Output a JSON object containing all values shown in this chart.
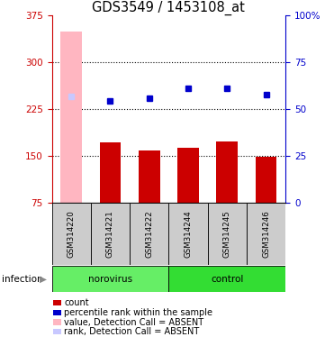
{
  "title": "GDS3549 / 1453108_at",
  "samples": [
    "GSM314220",
    "GSM314221",
    "GSM314222",
    "GSM314244",
    "GSM314245",
    "GSM314246"
  ],
  "bar_values": [
    350,
    172,
    158,
    163,
    173,
    148
  ],
  "bar_colors": [
    "#ffb6c1",
    "#cc0000",
    "#cc0000",
    "#cc0000",
    "#cc0000",
    "#cc0000"
  ],
  "dot_values": [
    245,
    238,
    243,
    258,
    258,
    248
  ],
  "dot_colors": [
    "#c8c8ff",
    "#0000cc",
    "#0000cc",
    "#0000cc",
    "#0000cc",
    "#0000cc"
  ],
  "ylim_left": [
    75,
    375
  ],
  "ylim_right": [
    0,
    100
  ],
  "yticks_left": [
    75,
    150,
    225,
    300,
    375
  ],
  "yticks_right": [
    0,
    25,
    50,
    75,
    100
  ],
  "ytick_labels_right": [
    "0",
    "25",
    "50",
    "75",
    "100%"
  ],
  "left_axis_color": "#cc0000",
  "right_axis_color": "#0000cc",
  "norovirus_color": "#66ee66",
  "control_color": "#33dd33",
  "sample_bg_color": "#cccccc",
  "infection_label": "infection",
  "legend_items": [
    {
      "label": "count",
      "color": "#cc0000"
    },
    {
      "label": "percentile rank within the sample",
      "color": "#0000cc"
    },
    {
      "label": "value, Detection Call = ABSENT",
      "color": "#ffb6c1"
    },
    {
      "label": "rank, Detection Call = ABSENT",
      "color": "#c8c8ff"
    }
  ]
}
